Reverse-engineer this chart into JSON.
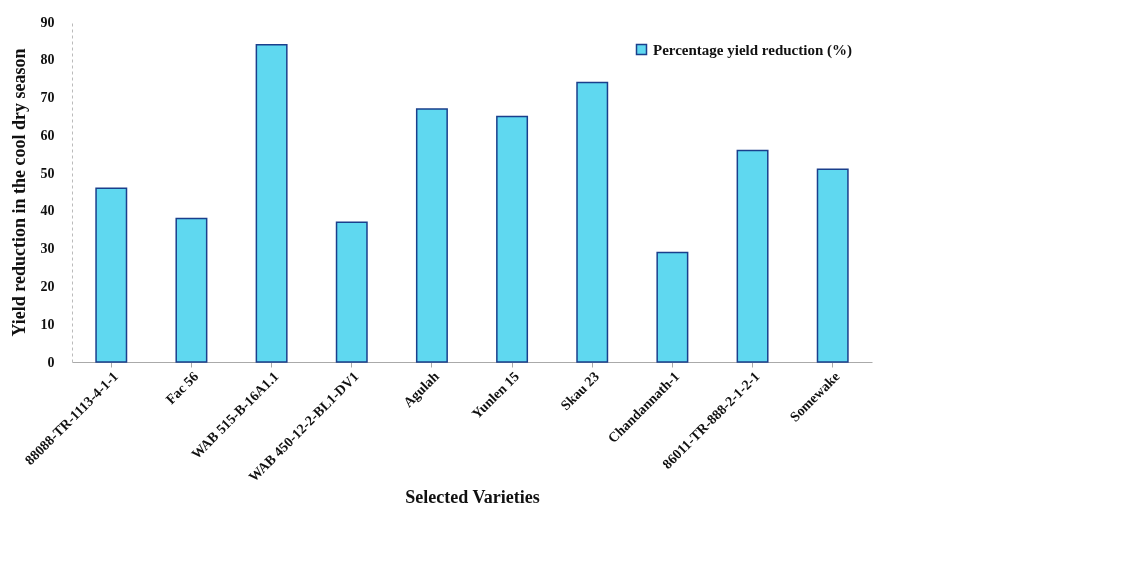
{
  "chart_data": {
    "type": "bar",
    "xlabel": "Selected Varieties",
    "ylabel": "Yield reduction in the cool dry season",
    "categories": [
      "88088-TR-1113-4-1-1",
      "Fac 56",
      "WAB 515-B-16A1.1",
      "WAB 450-12-2-BL1-DV1",
      "Agulah",
      "Yunlen 15",
      "Skau 23",
      "Chandannath-1",
      "86011-TR-888-2-1-2-1",
      "Somewake"
    ],
    "series": [
      {
        "name": "Percentage yield reduction (%)",
        "color": "#5fd8f0",
        "values": [
          46,
          38,
          84,
          37,
          67,
          65,
          74,
          29,
          56,
          51
        ]
      }
    ],
    "ylim": [
      0,
      90
    ],
    "yticks": [
      0,
      10,
      20,
      30,
      40,
      50,
      60,
      70,
      80,
      90
    ],
    "grid": false,
    "legend": "top right"
  }
}
